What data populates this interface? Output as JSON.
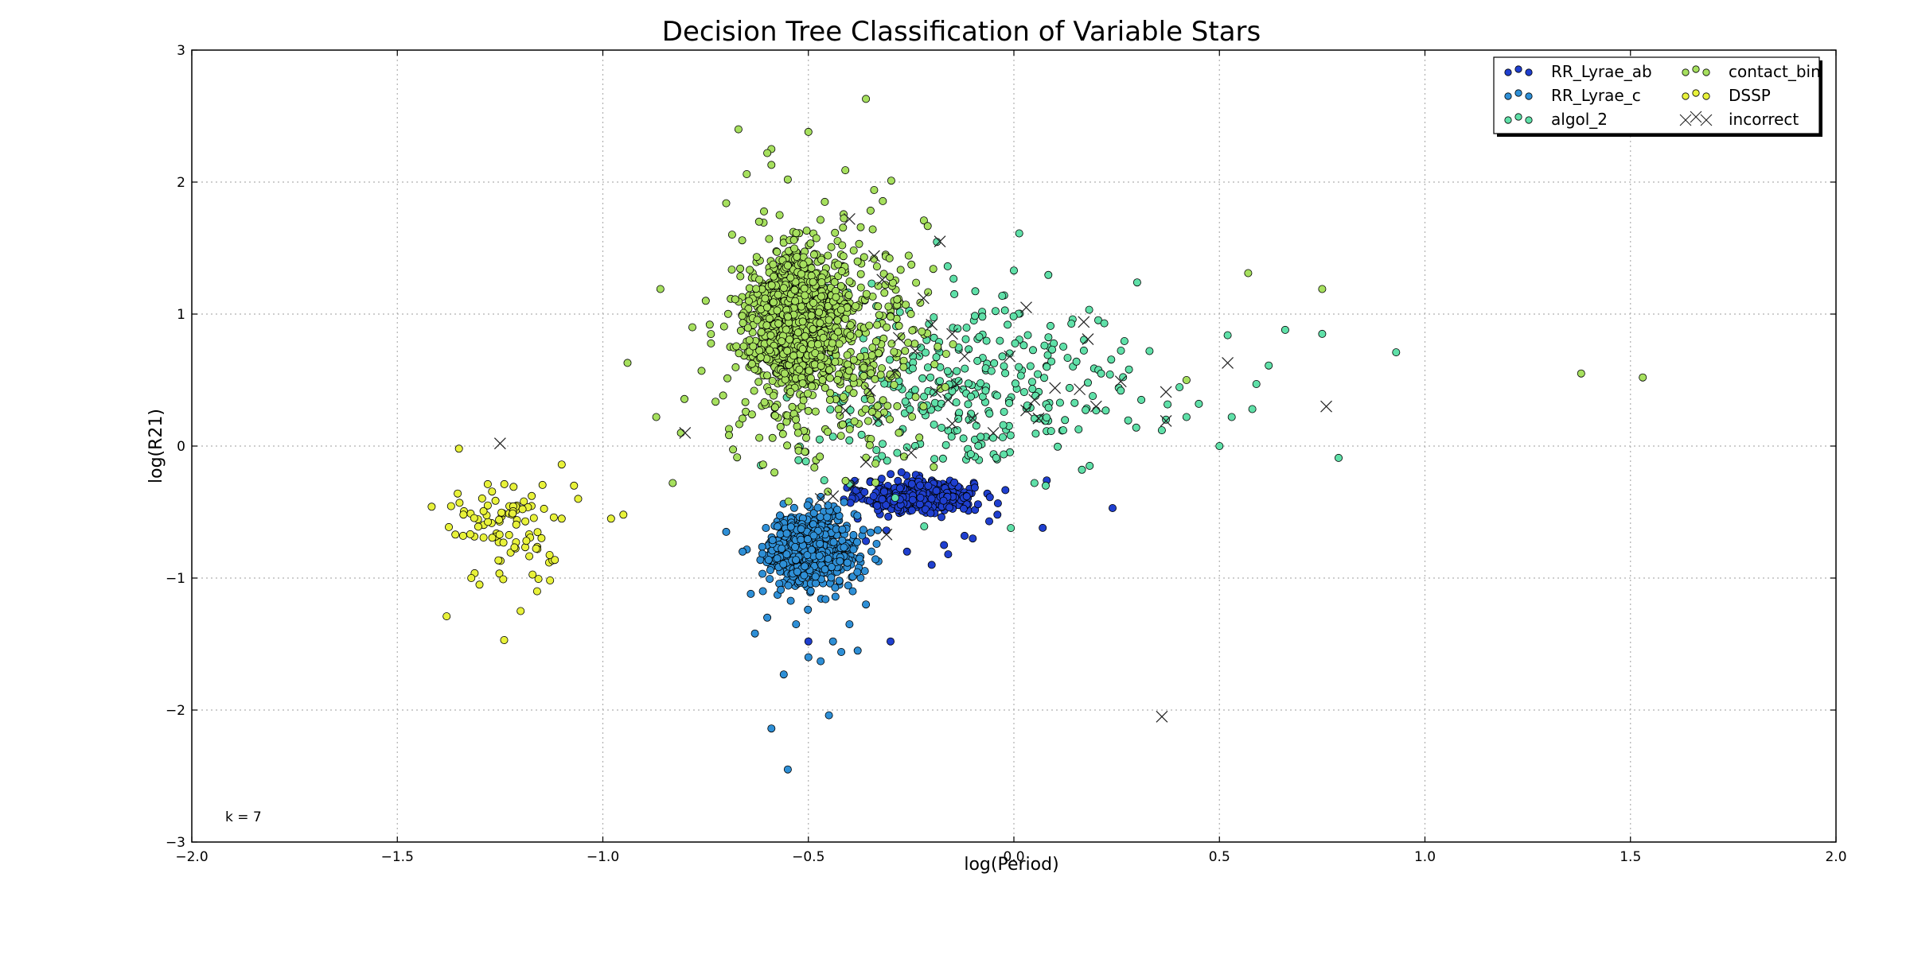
{
  "chart_data": {
    "type": "scatter",
    "title": "Decision Tree Classification of Variable Stars",
    "xlabel": "log(Period)",
    "ylabel": "log(R21)",
    "xlim": [
      -2.0,
      2.0
    ],
    "ylim": [
      -3,
      3
    ],
    "xticks": [
      "−2.0",
      "−1.5",
      "−1.0",
      "−0.5",
      "0.0",
      "0.5",
      "1.0",
      "1.5",
      "2.0"
    ],
    "yticks": [
      "−3",
      "−2",
      "−1",
      "0",
      "1",
      "2",
      "3"
    ],
    "grid": true,
    "legend_position": "top-right",
    "annotation": "k = 7",
    "series": [
      {
        "name": "RR_Lyrae_ab",
        "color": "#1f3fcf",
        "clusters": [
          {
            "center": [
              -0.23,
              -0.38
            ],
            "spread": [
              0.065,
              0.06
            ],
            "n": 520
          }
        ],
        "points": [
          [
            -0.36,
            -0.72
          ],
          [
            -0.26,
            -0.8
          ],
          [
            -0.2,
            -0.9
          ],
          [
            -0.16,
            -0.82
          ],
          [
            -0.12,
            -0.68
          ],
          [
            -0.06,
            -0.57
          ],
          [
            -0.04,
            -0.52
          ],
          [
            0.07,
            -0.62
          ],
          [
            0.08,
            -0.26
          ],
          [
            0.24,
            -0.47
          ],
          [
            -0.5,
            -1.48
          ],
          [
            -0.3,
            -1.48
          ],
          [
            -0.38,
            -0.55
          ],
          [
            -0.31,
            -0.64
          ],
          [
            -0.17,
            -0.75
          ],
          [
            -0.1,
            -0.7
          ]
        ]
      },
      {
        "name": "RR_Lyrae_c",
        "color": "#2e8fd6",
        "clusters": [
          {
            "center": [
              -0.49,
              -0.78
            ],
            "spread": [
              0.055,
              0.14
            ],
            "n": 600
          }
        ],
        "points": [
          [
            -0.59,
            -2.14
          ],
          [
            -0.55,
            -2.45
          ],
          [
            -0.56,
            -1.73
          ],
          [
            -0.45,
            -2.04
          ],
          [
            -0.38,
            -1.55
          ],
          [
            -0.6,
            -1.3
          ],
          [
            -0.64,
            -1.12
          ],
          [
            -0.7,
            -0.65
          ],
          [
            -0.66,
            -0.8
          ],
          [
            -0.63,
            -1.42
          ],
          [
            -0.47,
            -1.63
          ],
          [
            -0.44,
            -1.48
          ],
          [
            -0.4,
            -1.35
          ],
          [
            -0.5,
            -1.6
          ],
          [
            -0.36,
            -1.2
          ],
          [
            -0.53,
            -1.35
          ],
          [
            -0.42,
            -1.56
          ]
        ]
      },
      {
        "name": "algol_2",
        "color": "#5fe0a8",
        "clusters": [
          {
            "center": [
              -0.12,
              0.45
            ],
            "spread": [
              0.2,
              0.35
            ],
            "n": 320
          }
        ],
        "points": [
          [
            0.26,
            0.42
          ],
          [
            0.31,
            0.35
          ],
          [
            0.37,
            0.2
          ],
          [
            0.5,
            0.0
          ],
          [
            0.53,
            0.22
          ],
          [
            0.59,
            0.47
          ],
          [
            0.62,
            0.61
          ],
          [
            0.66,
            0.88
          ],
          [
            0.75,
            0.85
          ],
          [
            0.79,
            -0.09
          ],
          [
            0.93,
            0.71
          ],
          [
            0.42,
            0.22
          ],
          [
            0.45,
            0.32
          ],
          [
            0.28,
            0.58
          ],
          [
            0.33,
            0.72
          ],
          [
            0.05,
            -0.28
          ],
          [
            0.12,
            0.12
          ],
          [
            0.22,
            0.93
          ],
          [
            0.18,
            0.48
          ],
          [
            0.08,
            0.6
          ],
          [
            0.0,
            1.33
          ],
          [
            0.3,
            1.24
          ],
          [
            0.52,
            0.84
          ],
          [
            0.58,
            0.28
          ],
          [
            0.36,
            0.12
          ]
        ]
      },
      {
        "name": "contact_bin",
        "color": "#a6e05e",
        "clusters": [
          {
            "center": [
              -0.53,
              0.98
            ],
            "spread": [
              0.05,
              0.23
            ],
            "n": 1500
          },
          {
            "center": [
              -0.45,
              0.75
            ],
            "spread": [
              0.12,
              0.42
            ],
            "n": 450
          }
        ],
        "points": [
          [
            -0.36,
            2.63
          ],
          [
            -0.67,
            2.4
          ],
          [
            -0.5,
            2.38
          ],
          [
            -0.59,
            2.25
          ],
          [
            -0.6,
            2.22
          ],
          [
            -0.59,
            2.13
          ],
          [
            -0.65,
            2.06
          ],
          [
            -0.55,
            2.02
          ],
          [
            -0.41,
            2.09
          ],
          [
            -0.7,
            1.84
          ],
          [
            -0.34,
            1.94
          ],
          [
            -0.86,
            1.19
          ],
          [
            -0.74,
            0.92
          ],
          [
            -0.76,
            0.57
          ],
          [
            -0.94,
            0.63
          ],
          [
            -0.87,
            0.22
          ],
          [
            -0.83,
            -0.28
          ],
          [
            -0.81,
            0.1
          ],
          [
            -0.61,
            -0.14
          ],
          [
            1.38,
            0.55
          ],
          [
            1.53,
            0.52
          ],
          [
            0.57,
            1.31
          ],
          [
            0.75,
            1.19
          ],
          [
            0.42,
            0.5
          ],
          [
            -0.57,
            1.75
          ],
          [
            -0.62,
            1.7
          ],
          [
            -0.46,
            1.85
          ],
          [
            -0.3,
            0.98
          ],
          [
            -0.22,
            0.3
          ],
          [
            -0.28,
            0.1
          ]
        ]
      },
      {
        "name": "DSSP",
        "color": "#e8f23a",
        "clusters": [
          {
            "center": [
              -1.22,
              -0.6
            ],
            "spread": [
              0.07,
              0.17
            ],
            "n": 85
          }
        ],
        "points": [
          [
            -1.38,
            -1.29
          ],
          [
            -1.35,
            -0.02
          ],
          [
            -1.24,
            -1.47
          ],
          [
            -1.1,
            -0.14
          ],
          [
            -0.98,
            -0.55
          ],
          [
            -0.95,
            -0.52
          ],
          [
            -1.2,
            -1.25
          ],
          [
            -1.16,
            -1.1
          ],
          [
            -1.32,
            -1.0
          ],
          [
            -1.3,
            -1.05
          ],
          [
            -1.07,
            -0.3
          ],
          [
            -1.06,
            -0.4
          ],
          [
            -1.1,
            -0.55
          ],
          [
            -1.34,
            -0.68
          ],
          [
            -1.28,
            -0.45
          ]
        ]
      },
      {
        "name": "incorrect",
        "color": "#333333",
        "marker": "x",
        "points": [
          [
            -1.25,
            0.02
          ],
          [
            -0.8,
            0.1
          ],
          [
            0.36,
            -2.05
          ],
          [
            -0.34,
            1.44
          ],
          [
            -0.4,
            1.72
          ],
          [
            -0.18,
            1.55
          ],
          [
            -0.32,
            1.26
          ],
          [
            -0.22,
            1.12
          ],
          [
            0.03,
            1.05
          ],
          [
            0.17,
            0.94
          ],
          [
            0.18,
            0.81
          ],
          [
            0.52,
            0.63
          ],
          [
            0.76,
            0.3
          ],
          [
            0.37,
            0.41
          ],
          [
            0.37,
            0.19
          ],
          [
            0.26,
            0.49
          ],
          [
            0.2,
            0.3
          ],
          [
            0.16,
            0.43
          ],
          [
            0.1,
            0.44
          ],
          [
            0.06,
            0.21
          ],
          [
            0.03,
            0.27
          ],
          [
            -0.01,
            0.68
          ],
          [
            -0.12,
            0.68
          ],
          [
            -0.14,
            0.47
          ],
          [
            -0.16,
            0.35
          ],
          [
            -0.19,
            0.41
          ],
          [
            -0.24,
            0.72
          ],
          [
            -0.29,
            0.56
          ],
          [
            -0.35,
            0.42
          ],
          [
            -0.33,
            0.2
          ],
          [
            -0.41,
            0.27
          ],
          [
            -0.15,
            0.17
          ],
          [
            -0.1,
            0.21
          ],
          [
            -0.28,
            0.82
          ],
          [
            -0.47,
            -0.4
          ],
          [
            -0.44,
            -0.38
          ],
          [
            -0.39,
            -0.29
          ],
          [
            -0.36,
            -0.12
          ],
          [
            -0.31,
            -0.67
          ],
          [
            -0.2,
            0.92
          ],
          [
            -0.15,
            0.85
          ],
          [
            0.05,
            0.35
          ],
          [
            -0.05,
            0.1
          ],
          [
            -0.25,
            -0.05
          ]
        ]
      }
    ]
  }
}
